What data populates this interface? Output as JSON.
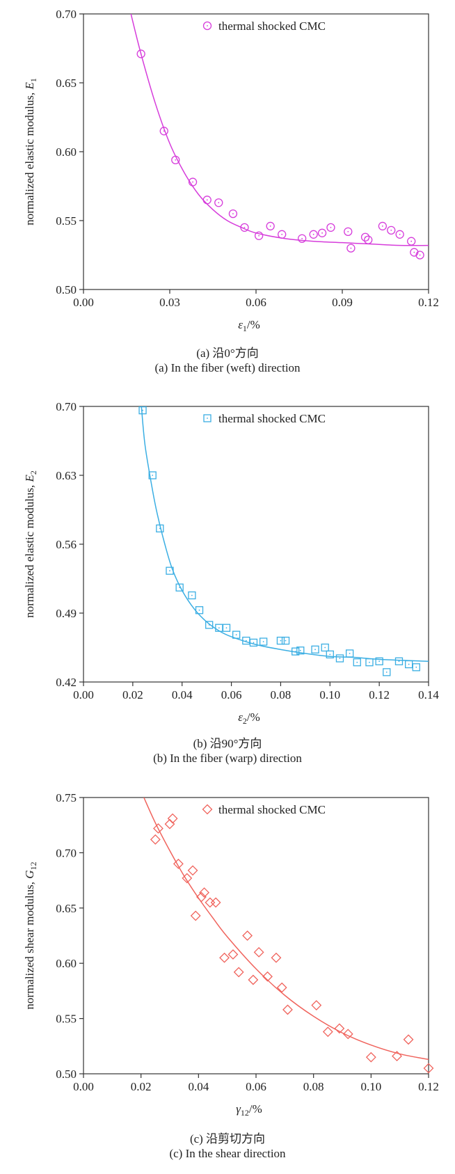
{
  "chart_data": [
    {
      "type": "scatter",
      "xlabel": "ε1/%",
      "ylabel": "normalized elastic modulus, E1",
      "xlim": [
        0,
        0.12
      ],
      "ylim": [
        0.5,
        0.7
      ],
      "x_ticks": [
        "0.00",
        "0.03",
        "0.06",
        "0.09",
        "0.12"
      ],
      "y_ticks": [
        "0.50",
        "0.55",
        "0.60",
        "0.65",
        "0.70"
      ],
      "legend_position": "top-center",
      "color": "#d63cdb",
      "series": [
        {
          "name": "thermal shocked CMC",
          "marker": "circle",
          "points": [
            [
              0.02,
              0.671
            ],
            [
              0.028,
              0.615
            ],
            [
              0.032,
              0.594
            ],
            [
              0.038,
              0.578
            ],
            [
              0.043,
              0.565
            ],
            [
              0.047,
              0.563
            ],
            [
              0.052,
              0.555
            ],
            [
              0.056,
              0.545
            ],
            [
              0.061,
              0.539
            ],
            [
              0.065,
              0.546
            ],
            [
              0.069,
              0.54
            ],
            [
              0.076,
              0.537
            ],
            [
              0.08,
              0.54
            ],
            [
              0.083,
              0.541
            ],
            [
              0.086,
              0.545
            ],
            [
              0.092,
              0.542
            ],
            [
              0.093,
              0.53
            ],
            [
              0.098,
              0.538
            ],
            [
              0.099,
              0.536
            ],
            [
              0.104,
              0.546
            ],
            [
              0.107,
              0.543
            ],
            [
              0.11,
              0.54
            ],
            [
              0.114,
              0.535
            ],
            [
              0.115,
              0.527
            ],
            [
              0.117,
              0.525
            ]
          ]
        }
      ],
      "fit_curve": [
        [
          0.0165,
          0.7
        ],
        [
          0.02,
          0.671
        ],
        [
          0.025,
          0.635
        ],
        [
          0.03,
          0.606
        ],
        [
          0.035,
          0.585
        ],
        [
          0.04,
          0.569
        ],
        [
          0.045,
          0.558
        ],
        [
          0.05,
          0.55
        ],
        [
          0.055,
          0.545
        ],
        [
          0.06,
          0.541
        ],
        [
          0.07,
          0.537
        ],
        [
          0.08,
          0.535
        ],
        [
          0.09,
          0.534
        ],
        [
          0.1,
          0.533
        ],
        [
          0.11,
          0.532
        ],
        [
          0.12,
          0.532
        ]
      ],
      "caption_cn": "(a) 沿0°方向",
      "caption_en": "(a) In the fiber (weft) direction"
    },
    {
      "type": "scatter",
      "xlabel": "ε2/%",
      "ylabel": "normalized elastic modulus, E2",
      "xlim": [
        0,
        0.14
      ],
      "ylim": [
        0.42,
        0.7
      ],
      "x_ticks": [
        "0.00",
        "0.02",
        "0.04",
        "0.06",
        "0.08",
        "0.10",
        "0.12",
        "0.14"
      ],
      "y_ticks": [
        "0.42",
        "0.49",
        "0.56",
        "0.63",
        "0.70"
      ],
      "legend_position": "top-center",
      "color": "#3aaee3",
      "series": [
        {
          "name": "thermal shocked CMC",
          "marker": "square",
          "points": [
            [
              0.024,
              0.696
            ],
            [
              0.028,
              0.63
            ],
            [
              0.031,
              0.576
            ],
            [
              0.035,
              0.533
            ],
            [
              0.039,
              0.516
            ],
            [
              0.044,
              0.508
            ],
            [
              0.047,
              0.493
            ],
            [
              0.051,
              0.478
            ],
            [
              0.055,
              0.475
            ],
            [
              0.058,
              0.475
            ],
            [
              0.062,
              0.468
            ],
            [
              0.066,
              0.462
            ],
            [
              0.069,
              0.46
            ],
            [
              0.073,
              0.461
            ],
            [
              0.08,
              0.462
            ],
            [
              0.082,
              0.462
            ],
            [
              0.086,
              0.451
            ],
            [
              0.088,
              0.452
            ],
            [
              0.094,
              0.453
            ],
            [
              0.098,
              0.455
            ],
            [
              0.1,
              0.448
            ],
            [
              0.104,
              0.444
            ],
            [
              0.108,
              0.449
            ],
            [
              0.111,
              0.44
            ],
            [
              0.116,
              0.44
            ],
            [
              0.12,
              0.441
            ],
            [
              0.123,
              0.43
            ],
            [
              0.128,
              0.441
            ],
            [
              0.132,
              0.438
            ],
            [
              0.135,
              0.435
            ]
          ]
        }
      ],
      "fit_curve": [
        [
          0.0235,
          0.7
        ],
        [
          0.025,
          0.66
        ],
        [
          0.028,
          0.615
        ],
        [
          0.03,
          0.59
        ],
        [
          0.033,
          0.56
        ],
        [
          0.036,
          0.535
        ],
        [
          0.04,
          0.513
        ],
        [
          0.045,
          0.494
        ],
        [
          0.05,
          0.481
        ],
        [
          0.055,
          0.472
        ],
        [
          0.06,
          0.466
        ],
        [
          0.07,
          0.458
        ],
        [
          0.08,
          0.453
        ],
        [
          0.09,
          0.449
        ],
        [
          0.1,
          0.446
        ],
        [
          0.11,
          0.445
        ],
        [
          0.12,
          0.443
        ],
        [
          0.14,
          0.441
        ]
      ],
      "caption_cn": "(b) 沿90°方向",
      "caption_en": "(b) In the fiber (warp) direction"
    },
    {
      "type": "scatter",
      "xlabel": "γ12/%",
      "ylabel": "normalized shear modulus, G12",
      "xlim": [
        0,
        0.12
      ],
      "ylim": [
        0.5,
        0.75
      ],
      "x_ticks": [
        "0.00",
        "0.02",
        "0.04",
        "0.06",
        "0.08",
        "0.10",
        "0.12"
      ],
      "y_ticks": [
        "0.50",
        "0.55",
        "0.60",
        "0.65",
        "0.70",
        "0.75"
      ],
      "legend_position": "top-center",
      "color": "#f0635c",
      "series": [
        {
          "name": "thermal shocked CMC",
          "marker": "diamond",
          "points": [
            [
              0.025,
              0.712
            ],
            [
              0.026,
              0.722
            ],
            [
              0.03,
              0.726
            ],
            [
              0.031,
              0.731
            ],
            [
              0.033,
              0.69
            ],
            [
              0.036,
              0.677
            ],
            [
              0.038,
              0.684
            ],
            [
              0.039,
              0.643
            ],
            [
              0.041,
              0.66
            ],
            [
              0.042,
              0.664
            ],
            [
              0.044,
              0.655
            ],
            [
              0.046,
              0.655
            ],
            [
              0.049,
              0.605
            ],
            [
              0.052,
              0.608
            ],
            [
              0.054,
              0.592
            ],
            [
              0.057,
              0.625
            ],
            [
              0.059,
              0.585
            ],
            [
              0.061,
              0.61
            ],
            [
              0.064,
              0.588
            ],
            [
              0.067,
              0.605
            ],
            [
              0.069,
              0.578
            ],
            [
              0.071,
              0.558
            ],
            [
              0.081,
              0.562
            ],
            [
              0.085,
              0.538
            ],
            [
              0.089,
              0.541
            ],
            [
              0.092,
              0.536
            ],
            [
              0.1,
              0.515
            ],
            [
              0.109,
              0.516
            ],
            [
              0.113,
              0.531
            ],
            [
              0.12,
              0.505
            ]
          ]
        }
      ],
      "fit_curve": [
        [
          0.021,
          0.75
        ],
        [
          0.025,
          0.727
        ],
        [
          0.03,
          0.702
        ],
        [
          0.035,
          0.679
        ],
        [
          0.04,
          0.659
        ],
        [
          0.045,
          0.641
        ],
        [
          0.05,
          0.624
        ],
        [
          0.06,
          0.595
        ],
        [
          0.07,
          0.571
        ],
        [
          0.08,
          0.552
        ],
        [
          0.09,
          0.537
        ],
        [
          0.1,
          0.526
        ],
        [
          0.11,
          0.518
        ],
        [
          0.12,
          0.513
        ]
      ],
      "caption_cn": "(c) 沿剪切方向",
      "caption_en": "(c) In the shear direction"
    }
  ]
}
